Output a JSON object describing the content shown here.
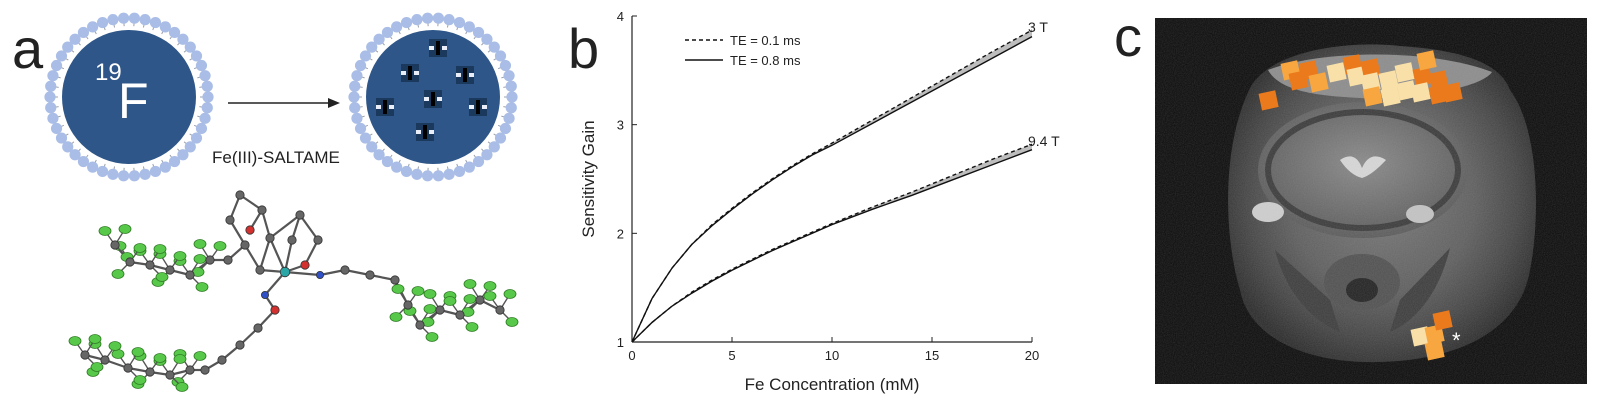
{
  "panels": {
    "a": {
      "letter": "a",
      "nucleus_label": "19",
      "nucleus_symbol": "F",
      "reagent_label": "Fe(III)-SALTAME",
      "colors": {
        "liposome_core": "#2f5688",
        "lipid_head": "#a9bde6",
        "bond": "#555555",
        "fluorine": "#58c84a",
        "carbon": "#666666",
        "oxygen": "#d33030"
      }
    },
    "b": {
      "letter": "b"
    },
    "c": {
      "letter": "c",
      "marker": "*",
      "colors": {
        "overlay_light": "#f8e0a8",
        "overlay_mid": "#f8a640",
        "overlay_dark": "#ea7a1c"
      }
    }
  },
  "chart_data": {
    "type": "line",
    "title": "",
    "xlabel": "Fe Concentration (mM)",
    "ylabel": "Sensitivity Gain",
    "xlim": [
      0,
      20
    ],
    "ylim": [
      1,
      4
    ],
    "xticks": [
      0,
      5,
      10,
      15,
      20
    ],
    "yticks": [
      1,
      2,
      3,
      4
    ],
    "grid": false,
    "legend_position": "top-left",
    "legend": [
      {
        "label": "TE = 0.1 ms",
        "style": "dashed"
      },
      {
        "label": "TE = 0.8 ms",
        "style": "solid"
      }
    ],
    "series": [
      {
        "field": "3 T",
        "te": "TE = 0.1 ms",
        "style": "dashed",
        "x": [
          0,
          1,
          2,
          3,
          4,
          5,
          6,
          7,
          8,
          9,
          10,
          12,
          14,
          16,
          18,
          20
        ],
        "y": [
          1,
          1.4,
          1.68,
          1.9,
          2.08,
          2.23,
          2.37,
          2.5,
          2.62,
          2.73,
          2.83,
          3.04,
          3.25,
          3.46,
          3.67,
          3.87
        ]
      },
      {
        "field": "3 T",
        "te": "TE = 0.8 ms",
        "style": "solid",
        "x": [
          0,
          1,
          2,
          3,
          4,
          5,
          6,
          7,
          8,
          9,
          10,
          12,
          14,
          16,
          18,
          20
        ],
        "y": [
          1,
          1.4,
          1.68,
          1.9,
          2.07,
          2.22,
          2.36,
          2.49,
          2.61,
          2.72,
          2.81,
          3.01,
          3.21,
          3.41,
          3.61,
          3.81
        ]
      },
      {
        "field": "9.4 T",
        "te": "TE = 0.1 ms",
        "style": "dashed",
        "x": [
          0,
          1,
          2,
          3,
          4,
          5,
          6,
          7,
          8,
          9,
          10,
          12,
          14,
          16,
          18,
          20
        ],
        "y": [
          1,
          1.18,
          1.33,
          1.46,
          1.57,
          1.67,
          1.76,
          1.85,
          1.93,
          2.01,
          2.09,
          2.24,
          2.38,
          2.53,
          2.68,
          2.82
        ]
      },
      {
        "field": "9.4 T",
        "te": "TE = 0.8 ms",
        "style": "solid",
        "x": [
          0,
          1,
          2,
          3,
          4,
          5,
          6,
          7,
          8,
          9,
          10,
          12,
          14,
          16,
          18,
          20
        ],
        "y": [
          1,
          1.18,
          1.33,
          1.45,
          1.56,
          1.66,
          1.75,
          1.84,
          1.92,
          2.0,
          2.08,
          2.22,
          2.35,
          2.49,
          2.63,
          2.77
        ]
      }
    ],
    "annotations": [
      {
        "text": "3 T",
        "x": 20,
        "y": 3.87
      },
      {
        "text": "9.4 T",
        "x": 20,
        "y": 2.82
      }
    ]
  }
}
